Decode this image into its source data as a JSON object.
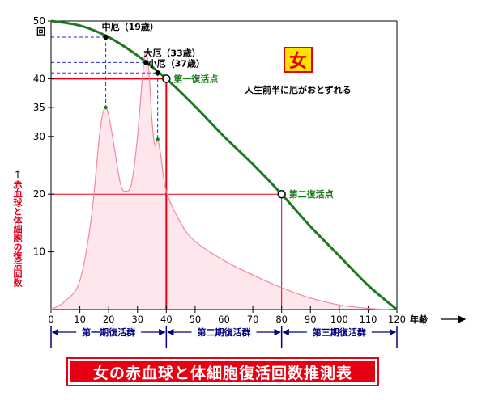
{
  "chart_data": {
    "type": "line",
    "y_unit_label": "回",
    "ylabel": "赤血球と体細胞の復活回数",
    "xlabel": "年齢",
    "xlim": [
      0,
      120
    ],
    "ylim": [
      0,
      50
    ],
    "x_ticks": [
      0,
      10,
      20,
      30,
      40,
      50,
      60,
      70,
      80,
      90,
      100,
      110,
      120
    ],
    "y_ticks": [
      10,
      20,
      30,
      35,
      40,
      50
    ],
    "series": [
      {
        "name": "",
        "color": "#1e7a1e",
        "x": [
          0,
          10,
          20,
          30,
          40,
          50,
          60,
          70,
          80,
          90,
          100,
          110,
          120
        ],
        "y": [
          50,
          49.2,
          47.2,
          44.0,
          40.0,
          35.2,
          30.0,
          25.2,
          20.0,
          14.4,
          9.3,
          4.2,
          0
        ]
      },
      {
        "name": "",
        "color": "#f08aa0",
        "fill": "#fde6ec",
        "x": [
          0,
          5,
          10,
          14,
          17,
          19,
          21,
          24,
          26,
          28,
          30,
          32,
          33,
          34,
          35,
          36,
          37,
          38,
          40,
          45,
          50,
          60,
          70,
          80,
          90,
          100,
          110,
          117
        ],
        "y": [
          0,
          1.5,
          5,
          16,
          31,
          35,
          31,
          22,
          20.5,
          22,
          30,
          42,
          44.5,
          41,
          33,
          28.5,
          29.5,
          27,
          20.5,
          15,
          11.8,
          8.5,
          6.0,
          3.8,
          2.0,
          0.8,
          0.2,
          0
        ]
      }
    ],
    "markers": [
      {
        "label": "中厄（19歳）",
        "x": 19,
        "y": 47.2
      },
      {
        "label": "大厄（33歳）",
        "x": 33,
        "y": 42.8
      },
      {
        "label": "小厄（37歳）",
        "x": 37,
        "y": 41.0
      }
    ],
    "revival_points": [
      {
        "label": "第一復活点",
        "x": 40,
        "y": 40
      },
      {
        "label": "第二復活点",
        "x": 80,
        "y": 20
      }
    ],
    "periods": [
      {
        "label": "第一期復活群",
        "from": 0,
        "to": 40
      },
      {
        "label": "第二期復活群",
        "from": 40,
        "to": 80
      },
      {
        "label": "第三期復活群",
        "from": 80,
        "to": 120
      }
    ],
    "title": "女の赤血球と体細胞復活回数推測表",
    "gender": "女",
    "note": "人生前半に厄がおとずれる",
    "grid": false
  }
}
